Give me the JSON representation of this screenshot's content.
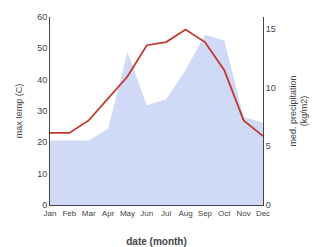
{
  "chart_data": {
    "type": "line",
    "x_label": "date (month)",
    "y_label": "max temp (C)",
    "y2_label": "med. precipitation\n(kg/m2)",
    "categories": [
      "Jan",
      "Feb",
      "Mar",
      "Apr",
      "May",
      "Jun",
      "Jul",
      "Aug",
      "Sep",
      "Oct",
      "Nov",
      "Dec"
    ],
    "series": [
      {
        "type": "area",
        "color": "#aabbee",
        "axis": "y2",
        "values": [
          5.5,
          5.5,
          5.5,
          6.5,
          13.0,
          8.5,
          9.0,
          11.5,
          14.5,
          14.0,
          7.5,
          7.0
        ]
      },
      {
        "type": "line",
        "color": "#c0392b",
        "axis": "y",
        "values": [
          23,
          23,
          27,
          34,
          41,
          51,
          52,
          56,
          52,
          43,
          27,
          22
        ]
      }
    ],
    "ylim": [
      0,
      60
    ],
    "yticks": [
      0,
      10,
      20,
      30,
      40,
      50,
      60
    ],
    "y2lim": [
      0,
      16
    ],
    "y2ticks": [
      0,
      5,
      10,
      15
    ],
    "grid": false
  }
}
